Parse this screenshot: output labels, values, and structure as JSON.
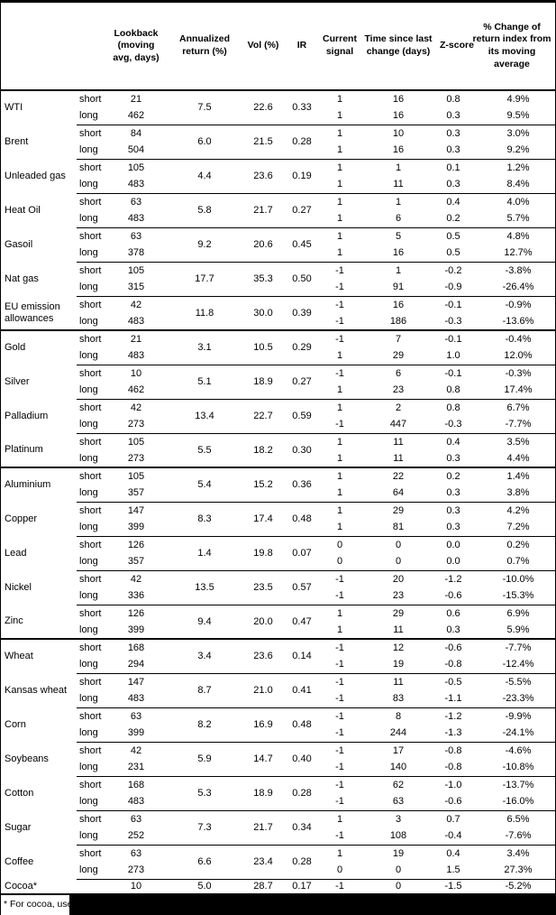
{
  "table": {
    "columns": [
      {
        "name": "commodity-column-header",
        "label": ""
      },
      {
        "name": "position-column-header",
        "label": ""
      },
      {
        "name": "lookback-column-header",
        "label": "Lookback (moving avg, days)"
      },
      {
        "name": "annualized-return-column-header",
        "label": "Annualized return (%)"
      },
      {
        "name": "vol-column-header",
        "label": "Vol (%)"
      },
      {
        "name": "ir-column-header",
        "label": "IR"
      },
      {
        "name": "current-signal-column-header",
        "label": "Current signal"
      },
      {
        "name": "time-since-column-header",
        "label": "Time since last change (days)"
      },
      {
        "name": "zscore-column-header",
        "label": "Z-score"
      },
      {
        "name": "pct-change-column-header",
        "label": "% Change of return index from its moving average"
      }
    ],
    "groups": [
      {
        "name": "WTI",
        "section_start": false,
        "annualized_return": "7.5",
        "vol": "22.6",
        "ir": "0.33",
        "rows": [
          {
            "pos": "short",
            "lookback": "21",
            "signal": "1",
            "time_since": "16",
            "z_score": "0.8",
            "pct_change": "4.9%"
          },
          {
            "pos": "long",
            "lookback": "462",
            "signal": "1",
            "time_since": "16",
            "z_score": "0.3",
            "pct_change": "9.5%"
          }
        ]
      },
      {
        "name": "Brent",
        "section_start": false,
        "annualized_return": "6.0",
        "vol": "21.5",
        "ir": "0.28",
        "rows": [
          {
            "pos": "short",
            "lookback": "84",
            "signal": "1",
            "time_since": "10",
            "z_score": "0.3",
            "pct_change": "3.0%"
          },
          {
            "pos": "long",
            "lookback": "504",
            "signal": "1",
            "time_since": "16",
            "z_score": "0.3",
            "pct_change": "9.2%"
          }
        ]
      },
      {
        "name": "Unleaded gas",
        "section_start": false,
        "annualized_return": "4.4",
        "vol": "23.6",
        "ir": "0.19",
        "rows": [
          {
            "pos": "short",
            "lookback": "105",
            "signal": "1",
            "time_since": "1",
            "z_score": "0.1",
            "pct_change": "1.2%"
          },
          {
            "pos": "long",
            "lookback": "483",
            "signal": "1",
            "time_since": "11",
            "z_score": "0.3",
            "pct_change": "8.4%"
          }
        ]
      },
      {
        "name": "Heat Oil",
        "section_start": false,
        "annualized_return": "5.8",
        "vol": "21.7",
        "ir": "0.27",
        "rows": [
          {
            "pos": "short",
            "lookback": "63",
            "signal": "1",
            "time_since": "1",
            "z_score": "0.4",
            "pct_change": "4.0%"
          },
          {
            "pos": "long",
            "lookback": "483",
            "signal": "1",
            "time_since": "6",
            "z_score": "0.2",
            "pct_change": "5.7%"
          }
        ]
      },
      {
        "name": "Gasoil",
        "section_start": false,
        "annualized_return": "9.2",
        "vol": "20.6",
        "ir": "0.45",
        "rows": [
          {
            "pos": "short",
            "lookback": "63",
            "signal": "1",
            "time_since": "5",
            "z_score": "0.5",
            "pct_change": "4.8%"
          },
          {
            "pos": "long",
            "lookback": "378",
            "signal": "1",
            "time_since": "16",
            "z_score": "0.5",
            "pct_change": "12.7%"
          }
        ]
      },
      {
        "name": "Nat gas",
        "section_start": false,
        "annualized_return": "17.7",
        "vol": "35.3",
        "ir": "0.50",
        "rows": [
          {
            "pos": "short",
            "lookback": "105",
            "signal": "-1",
            "time_since": "1",
            "z_score": "-0.2",
            "pct_change": "-3.8%"
          },
          {
            "pos": "long",
            "lookback": "315",
            "signal": "-1",
            "time_since": "91",
            "z_score": "-0.9",
            "pct_change": "-26.4%"
          }
        ]
      },
      {
        "name": "EU emission allowances",
        "section_start": false,
        "annualized_return": "11.8",
        "vol": "30.0",
        "ir": "0.39",
        "rows": [
          {
            "pos": "short",
            "lookback": "42",
            "signal": "-1",
            "time_since": "16",
            "z_score": "-0.1",
            "pct_change": "-0.9%"
          },
          {
            "pos": "long",
            "lookback": "483",
            "signal": "-1",
            "time_since": "186",
            "z_score": "-0.3",
            "pct_change": "-13.6%"
          }
        ]
      },
      {
        "name": "Gold",
        "section_start": true,
        "annualized_return": "3.1",
        "vol": "10.5",
        "ir": "0.29",
        "rows": [
          {
            "pos": "short",
            "lookback": "21",
            "signal": "-1",
            "time_since": "7",
            "z_score": "-0.1",
            "pct_change": "-0.4%"
          },
          {
            "pos": "long",
            "lookback": "483",
            "signal": "1",
            "time_since": "29",
            "z_score": "1.0",
            "pct_change": "12.0%"
          }
        ]
      },
      {
        "name": "Silver",
        "section_start": false,
        "annualized_return": "5.1",
        "vol": "18.9",
        "ir": "0.27",
        "rows": [
          {
            "pos": "short",
            "lookback": "10",
            "signal": "-1",
            "time_since": "6",
            "z_score": "-0.1",
            "pct_change": "-0.3%"
          },
          {
            "pos": "long",
            "lookback": "462",
            "signal": "1",
            "time_since": "23",
            "z_score": "0.8",
            "pct_change": "17.4%"
          }
        ]
      },
      {
        "name": "Palladium",
        "section_start": false,
        "annualized_return": "13.4",
        "vol": "22.7",
        "ir": "0.59",
        "rows": [
          {
            "pos": "short",
            "lookback": "42",
            "signal": "1",
            "time_since": "2",
            "z_score": "0.8",
            "pct_change": "6.7%"
          },
          {
            "pos": "long",
            "lookback": "273",
            "signal": "-1",
            "time_since": "447",
            "z_score": "-0.3",
            "pct_change": "-7.7%"
          }
        ]
      },
      {
        "name": "Platinum",
        "section_start": false,
        "annualized_return": "5.5",
        "vol": "18.2",
        "ir": "0.30",
        "rows": [
          {
            "pos": "short",
            "lookback": "105",
            "signal": "1",
            "time_since": "11",
            "z_score": "0.4",
            "pct_change": "3.5%"
          },
          {
            "pos": "long",
            "lookback": "273",
            "signal": "1",
            "time_since": "11",
            "z_score": "0.3",
            "pct_change": "4.4%"
          }
        ]
      },
      {
        "name": "Aluminium",
        "section_start": true,
        "annualized_return": "5.4",
        "vol": "15.2",
        "ir": "0.36",
        "rows": [
          {
            "pos": "short",
            "lookback": "105",
            "signal": "1",
            "time_since": "22",
            "z_score": "0.2",
            "pct_change": "1.4%"
          },
          {
            "pos": "long",
            "lookback": "357",
            "signal": "1",
            "time_since": "64",
            "z_score": "0.3",
            "pct_change": "3.8%"
          }
        ]
      },
      {
        "name": "Copper",
        "section_start": false,
        "annualized_return": "8.3",
        "vol": "17.4",
        "ir": "0.48",
        "rows": [
          {
            "pos": "short",
            "lookback": "147",
            "signal": "1",
            "time_since": "29",
            "z_score": "0.3",
            "pct_change": "4.2%"
          },
          {
            "pos": "long",
            "lookback": "399",
            "signal": "1",
            "time_since": "81",
            "z_score": "0.3",
            "pct_change": "7.2%"
          }
        ]
      },
      {
        "name": "Lead",
        "section_start": false,
        "annualized_return": "1.4",
        "vol": "19.8",
        "ir": "0.07",
        "rows": [
          {
            "pos": "short",
            "lookback": "126",
            "signal": "0",
            "time_since": "0",
            "z_score": "0.0",
            "pct_change": "0.2%"
          },
          {
            "pos": "long",
            "lookback": "357",
            "signal": "0",
            "time_since": "0",
            "z_score": "0.0",
            "pct_change": "0.7%"
          }
        ]
      },
      {
        "name": "Nickel",
        "section_start": false,
        "annualized_return": "13.5",
        "vol": "23.5",
        "ir": "0.57",
        "rows": [
          {
            "pos": "short",
            "lookback": "42",
            "signal": "-1",
            "time_since": "20",
            "z_score": "-1.2",
            "pct_change": "-10.0%"
          },
          {
            "pos": "long",
            "lookback": "336",
            "signal": "-1",
            "time_since": "23",
            "z_score": "-0.6",
            "pct_change": "-15.3%"
          }
        ]
      },
      {
        "name": "Zinc",
        "section_start": false,
        "annualized_return": "9.4",
        "vol": "20.0",
        "ir": "0.47",
        "rows": [
          {
            "pos": "short",
            "lookback": "126",
            "signal": "1",
            "time_since": "29",
            "z_score": "0.6",
            "pct_change": "6.9%"
          },
          {
            "pos": "long",
            "lookback": "399",
            "signal": "1",
            "time_since": "11",
            "z_score": "0.3",
            "pct_change": "5.9%"
          }
        ]
      },
      {
        "name": "Wheat",
        "section_start": true,
        "annualized_return": "3.4",
        "vol": "23.6",
        "ir": "0.14",
        "rows": [
          {
            "pos": "short",
            "lookback": "168",
            "signal": "-1",
            "time_since": "12",
            "z_score": "-0.6",
            "pct_change": "-7.7%"
          },
          {
            "pos": "long",
            "lookback": "294",
            "signal": "-1",
            "time_since": "19",
            "z_score": "-0.8",
            "pct_change": "-12.4%"
          }
        ]
      },
      {
        "name": "Kansas wheat",
        "section_start": false,
        "annualized_return": "8.7",
        "vol": "21.0",
        "ir": "0.41",
        "rows": [
          {
            "pos": "short",
            "lookback": "147",
            "signal": "-1",
            "time_since": "11",
            "z_score": "-0.5",
            "pct_change": "-5.5%"
          },
          {
            "pos": "long",
            "lookback": "483",
            "signal": "-1",
            "time_since": "83",
            "z_score": "-1.1",
            "pct_change": "-23.3%"
          }
        ]
      },
      {
        "name": "Corn",
        "section_start": false,
        "annualized_return": "8.2",
        "vol": "16.9",
        "ir": "0.48",
        "rows": [
          {
            "pos": "short",
            "lookback": "63",
            "signal": "-1",
            "time_since": "8",
            "z_score": "-1.2",
            "pct_change": "-9.9%"
          },
          {
            "pos": "long",
            "lookback": "399",
            "signal": "-1",
            "time_since": "244",
            "z_score": "-1.3",
            "pct_change": "-24.1%"
          }
        ]
      },
      {
        "name": "Soybeans",
        "section_start": false,
        "annualized_return": "5.9",
        "vol": "14.7",
        "ir": "0.40",
        "rows": [
          {
            "pos": "short",
            "lookback": "42",
            "signal": "-1",
            "time_since": "17",
            "z_score": "-0.8",
            "pct_change": "-4.6%"
          },
          {
            "pos": "long",
            "lookback": "231",
            "signal": "-1",
            "time_since": "140",
            "z_score": "-0.8",
            "pct_change": "-10.8%"
          }
        ]
      },
      {
        "name": "Cotton",
        "section_start": false,
        "annualized_return": "5.3",
        "vol": "18.9",
        "ir": "0.28",
        "rows": [
          {
            "pos": "short",
            "lookback": "168",
            "signal": "-1",
            "time_since": "62",
            "z_score": "-1.0",
            "pct_change": "-13.7%"
          },
          {
            "pos": "long",
            "lookback": "483",
            "signal": "-1",
            "time_since": "63",
            "z_score": "-0.6",
            "pct_change": "-16.0%"
          }
        ]
      },
      {
        "name": "Sugar",
        "section_start": false,
        "annualized_return": "7.3",
        "vol": "21.7",
        "ir": "0.34",
        "rows": [
          {
            "pos": "short",
            "lookback": "63",
            "signal": "1",
            "time_since": "3",
            "z_score": "0.7",
            "pct_change": "6.5%"
          },
          {
            "pos": "long",
            "lookback": "252",
            "signal": "-1",
            "time_since": "108",
            "z_score": "-0.4",
            "pct_change": "-7.6%"
          }
        ]
      },
      {
        "name": "Coffee",
        "section_start": false,
        "annualized_return": "6.6",
        "vol": "23.4",
        "ir": "0.28",
        "rows": [
          {
            "pos": "short",
            "lookback": "63",
            "signal": "1",
            "time_since": "19",
            "z_score": "0.4",
            "pct_change": "3.4%"
          },
          {
            "pos": "long",
            "lookback": "273",
            "signal": "0",
            "time_since": "0",
            "z_score": "1.5",
            "pct_change": "27.3%"
          }
        ]
      },
      {
        "name": "Cocoa*",
        "section_start": false,
        "annualized_return": "5.0",
        "vol": "28.7",
        "ir": "0.17",
        "rows": [
          {
            "pos": "",
            "lookback": "10",
            "signal": "-1",
            "time_since": "0",
            "z_score": "-1.5",
            "pct_change": "-5.2%"
          }
        ]
      }
    ]
  },
  "footnote": {
    "visible_text": "* For cocoa, uses c"
  }
}
